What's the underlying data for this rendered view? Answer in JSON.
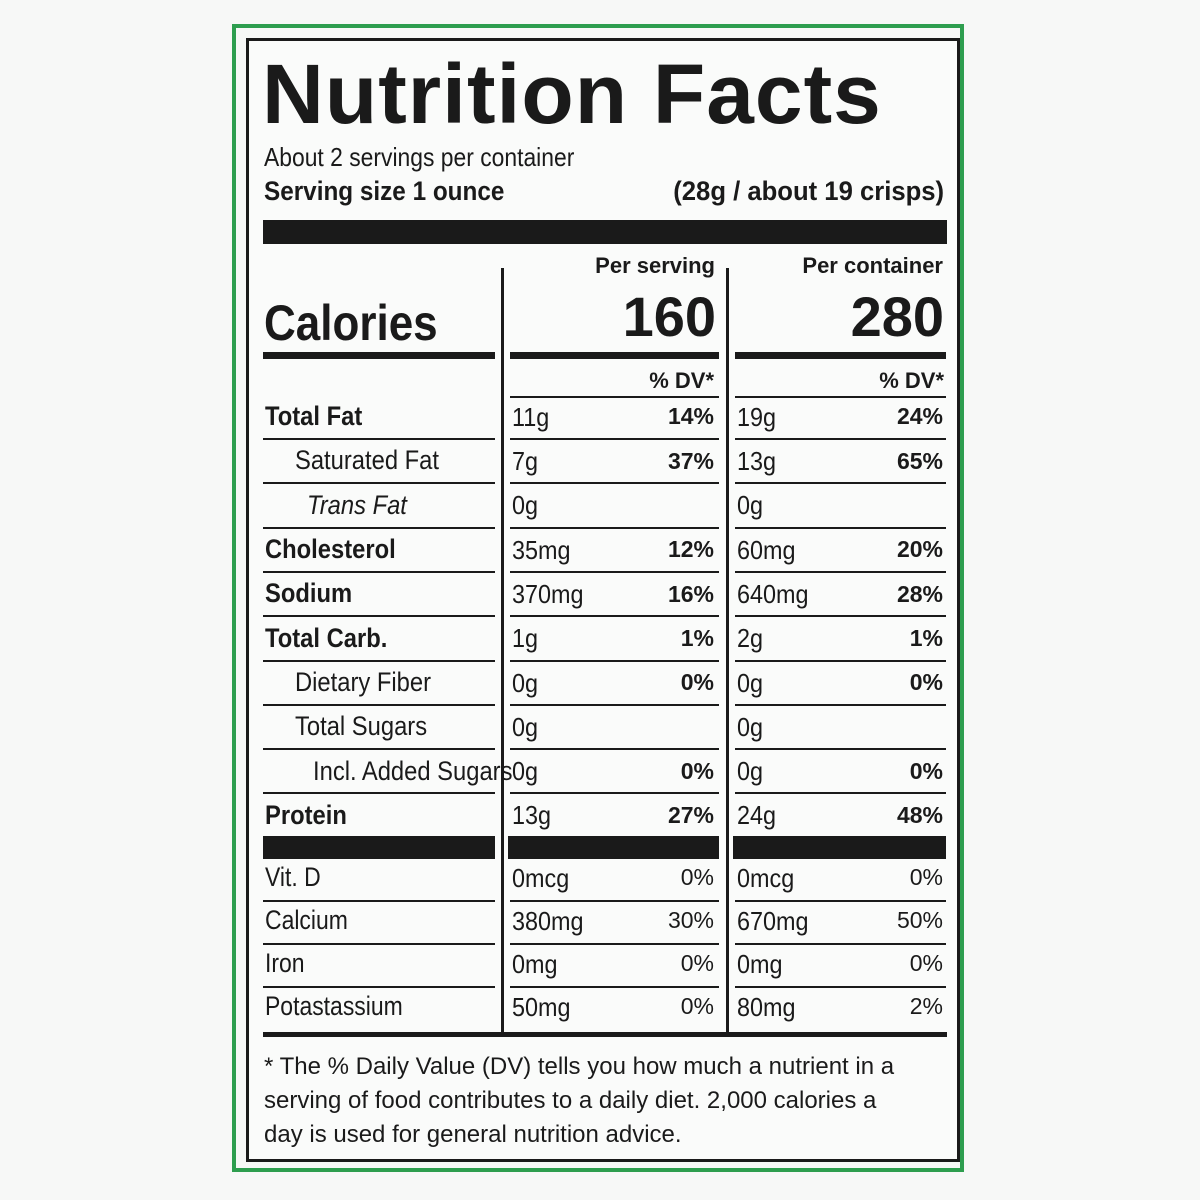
{
  "label": {
    "title": "Nutrition Facts",
    "servings": "About 2 servings per container",
    "serving_size_label": "Serving size 1 ounce",
    "serving_size_value": "(28g / about 19 crisps)",
    "columns": [
      "Per serving",
      "Per container"
    ],
    "calories_label": "Calories",
    "calories": [
      "160",
      "280"
    ],
    "dv_header": "% DV*",
    "nutrients": [
      {
        "name": "Total Fat",
        "style": "bold",
        "indent": 0,
        "values": [
          "11g",
          "14%",
          "19g",
          "24%"
        ]
      },
      {
        "name": "Saturated Fat",
        "style": "normal",
        "indent": 1,
        "values": [
          "7g",
          "37%",
          "13g",
          "65%"
        ]
      },
      {
        "name": "Trans Fat",
        "style": "italic",
        "indent": 2,
        "values": [
          "0g",
          null,
          "0g",
          null
        ]
      },
      {
        "name": "Cholesterol",
        "style": "bold",
        "indent": 0,
        "values": [
          "35mg",
          "12%",
          "60mg",
          "20%"
        ]
      },
      {
        "name": "Sodium",
        "style": "bold",
        "indent": 0,
        "values": [
          "370mg",
          "16%",
          "640mg",
          "28%"
        ]
      },
      {
        "name": "Total Carb.",
        "style": "bold",
        "indent": 0,
        "values": [
          "1g",
          "1%",
          "2g",
          "1%"
        ]
      },
      {
        "name": "Dietary Fiber",
        "style": "normal",
        "indent": 1,
        "values": [
          "0g",
          "0%",
          "0g",
          "0%"
        ]
      },
      {
        "name": "Total Sugars",
        "style": "normal",
        "indent": 1,
        "values": [
          "0g",
          null,
          "0g",
          null
        ]
      },
      {
        "name": "Incl. Added Sugars",
        "style": "normal",
        "indent": 3,
        "values": [
          "0g",
          "0%",
          "0g",
          "0%"
        ]
      },
      {
        "name": "Protein",
        "style": "bold",
        "indent": 0,
        "values": [
          "13g",
          "27%",
          "24g",
          "48%"
        ]
      }
    ],
    "vitamins": [
      {
        "name": "Vit. D",
        "values": [
          "0mcg",
          "0%",
          "0mcg",
          "0%"
        ]
      },
      {
        "name": "Calcium",
        "values": [
          "380mg",
          "30%",
          "670mg",
          "50%"
        ]
      },
      {
        "name": "Iron",
        "values": [
          "0mg",
          "0%",
          "0mg",
          "0%"
        ]
      },
      {
        "name": "Potastassium",
        "values": [
          "50mg",
          "0%",
          "80mg",
          "2%"
        ]
      }
    ],
    "footnote": [
      "* The % Daily Value (DV) tells you how much a nutrient in a",
      "serving of food contributes to a daily diet. 2,000 calories a",
      "day is used for general nutrition advice."
    ]
  }
}
